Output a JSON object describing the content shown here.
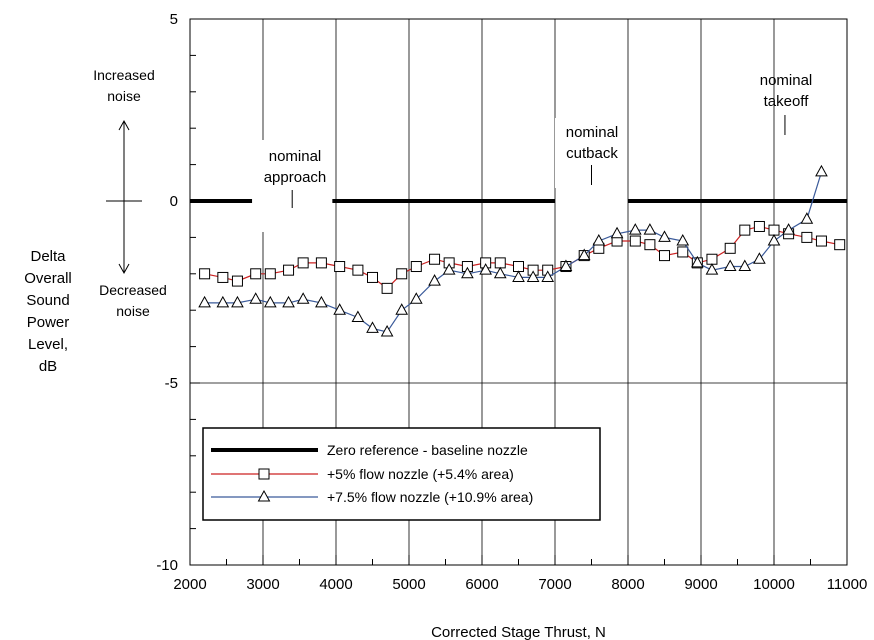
{
  "chart_data": {
    "type": "line",
    "xlabel": "Corrected Stage Thrust, N",
    "ylabel_lines": [
      "Delta",
      "Overall",
      "Sound",
      "Power",
      "Level,",
      "dB"
    ],
    "xlim": [
      2000,
      11000
    ],
    "ylim": [
      -10,
      5
    ],
    "x_ticks": [
      2000,
      3000,
      4000,
      5000,
      6000,
      7000,
      8000,
      9000,
      10000,
      11000
    ],
    "x_tick_labels": [
      "2000",
      "3000",
      "4000",
      "5000",
      "6000",
      "7000",
      "8000",
      "9000",
      "10000",
      "11000"
    ],
    "y_ticks": [
      5,
      0,
      -5,
      -10
    ],
    "y_tick_labels": [
      "5",
      "0",
      "-5",
      "-10"
    ],
    "grid": "vertical lines at each 1000 N; horizontal line at -5",
    "annotations": {
      "increased": [
        "Increased",
        "noise"
      ],
      "decreased": [
        "Decreased",
        "noise"
      ],
      "approach": [
        "nominal",
        "approach"
      ],
      "cutback": [
        "nominal",
        "cutback"
      ],
      "takeoff": [
        "nominal",
        "takeoff"
      ]
    },
    "legend_position": "bottom-left",
    "series": [
      {
        "name": "Zero reference - baseline nozzle",
        "color": "#000000",
        "segments": [
          [
            2000,
            2850
          ],
          [
            3950,
            7000
          ],
          [
            8000,
            11000
          ]
        ],
        "y": 0
      },
      {
        "name": "+5% flow nozzle (+5.4% area)",
        "color": "#cc2222",
        "marker": "square",
        "points": [
          [
            2200,
            -2.0
          ],
          [
            2450,
            -2.1
          ],
          [
            2650,
            -2.2
          ],
          [
            2900,
            -2.0
          ],
          [
            3100,
            -2.0
          ],
          [
            3350,
            -1.9
          ],
          [
            3550,
            -1.7
          ],
          [
            3800,
            -1.7
          ],
          [
            4050,
            -1.8
          ],
          [
            4300,
            -1.9
          ],
          [
            4500,
            -2.1
          ],
          [
            4700,
            -2.4
          ],
          [
            4900,
            -2.0
          ],
          [
            5100,
            -1.8
          ],
          [
            5350,
            -1.6
          ],
          [
            5550,
            -1.7
          ],
          [
            5800,
            -1.8
          ],
          [
            6050,
            -1.7
          ],
          [
            6250,
            -1.7
          ],
          [
            6500,
            -1.8
          ],
          [
            6700,
            -1.9
          ],
          [
            6900,
            -1.9
          ],
          [
            7150,
            -1.8
          ],
          [
            7400,
            -1.5
          ],
          [
            7600,
            -1.3
          ],
          [
            7850,
            -1.1
          ],
          [
            8100,
            -1.1
          ],
          [
            8300,
            -1.2
          ],
          [
            8500,
            -1.5
          ],
          [
            8750,
            -1.4
          ],
          [
            8950,
            -1.7
          ],
          [
            9150,
            -1.6
          ],
          [
            9400,
            -1.3
          ],
          [
            9600,
            -0.8
          ],
          [
            9800,
            -0.7
          ],
          [
            10000,
            -0.8
          ],
          [
            10200,
            -0.9
          ],
          [
            10450,
            -1.0
          ],
          [
            10650,
            -1.1
          ],
          [
            10900,
            -1.2
          ]
        ]
      },
      {
        "name": "+7.5% flow nozzle (+10.9% area)",
        "color": "#3a5a9a",
        "marker": "triangle",
        "points": [
          [
            2200,
            -2.8
          ],
          [
            2450,
            -2.8
          ],
          [
            2650,
            -2.8
          ],
          [
            2900,
            -2.7
          ],
          [
            3100,
            -2.8
          ],
          [
            3350,
            -2.8
          ],
          [
            3550,
            -2.7
          ],
          [
            3800,
            -2.8
          ],
          [
            4050,
            -3.0
          ],
          [
            4300,
            -3.2
          ],
          [
            4500,
            -3.5
          ],
          [
            4700,
            -3.6
          ],
          [
            4900,
            -3.0
          ],
          [
            5100,
            -2.7
          ],
          [
            5350,
            -2.2
          ],
          [
            5550,
            -1.9
          ],
          [
            5800,
            -2.0
          ],
          [
            6050,
            -1.9
          ],
          [
            6250,
            -2.0
          ],
          [
            6500,
            -2.1
          ],
          [
            6700,
            -2.1
          ],
          [
            6900,
            -2.1
          ],
          [
            7150,
            -1.8
          ],
          [
            7400,
            -1.5
          ],
          [
            7600,
            -1.1
          ],
          [
            7850,
            -0.9
          ],
          [
            8100,
            -0.8
          ],
          [
            8300,
            -0.8
          ],
          [
            8500,
            -1.0
          ],
          [
            8750,
            -1.1
          ],
          [
            8950,
            -1.7
          ],
          [
            9150,
            -1.9
          ],
          [
            9400,
            -1.8
          ],
          [
            9600,
            -1.8
          ],
          [
            9800,
            -1.6
          ],
          [
            10000,
            -1.1
          ],
          [
            10200,
            -0.8
          ],
          [
            10450,
            -0.5
          ],
          [
            10650,
            0.8
          ]
        ]
      }
    ]
  }
}
